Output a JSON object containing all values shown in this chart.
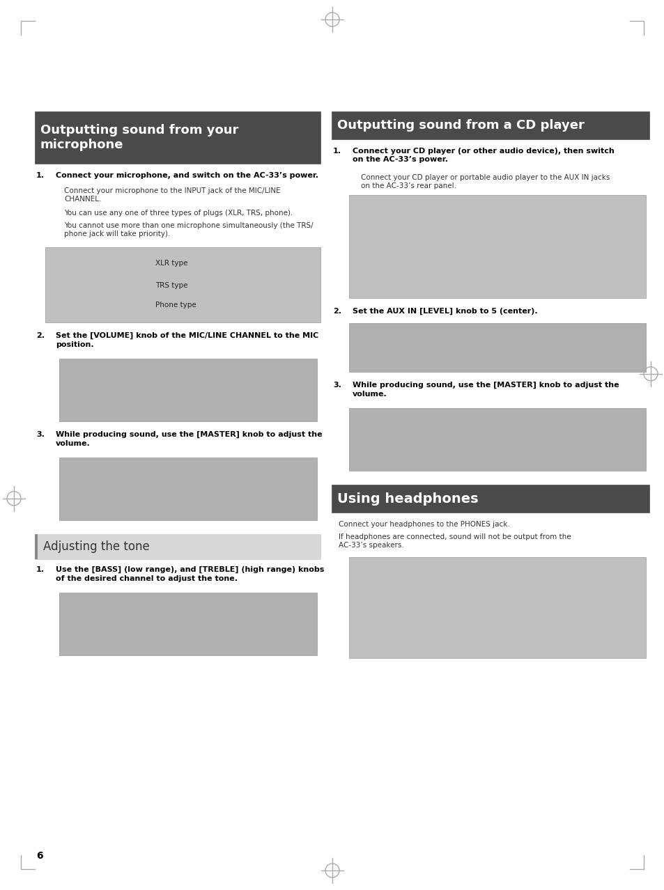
{
  "page_bg": "#ffffff",
  "page_num": "6",
  "header_bg": "#4a4a4a",
  "header_text_color": "#ffffff",
  "sec1_title": "Outputting sound from your\nmicrophone",
  "sec1_step1_bold": "Connect your microphone, and switch on the AC-33’s power.",
  "sec1_step1_text1": "Connect your microphone to the INPUT jack of the MIC/LINE\nCHANNEL.",
  "sec1_step1_text2": "You can use any one of three types of plugs (XLR, TRS, phone).",
  "sec1_step1_text3": "You cannot use more than one microphone simultaneously (the TRS/\nphone jack will take priority).",
  "sec1_step2_bold": "Set the [VOLUME] knob of the MIC/LINE CHANNEL to the MIC\nposition.",
  "sec1_step3_bold": "While producing sound, use the [MASTER] knob to adjust the\nvolume.",
  "sec2_title": "Outputting sound from a CD player",
  "sec2_step1_bold": "Connect your CD player (or other audio device), then switch\non the AC-33’s power.",
  "sec2_step1_text1": "Connect your CD player or portable audio player to the AUX IN jacks\non the AC-33’s rear panel.",
  "sec2_step2_bold": "Set the AUX IN [LEVEL] knob to 5 (center).",
  "sec2_step3_bold": "While producing sound, use the [MASTER] knob to adjust the\nvolume.",
  "sec3_title": "Using headphones",
  "sec3_text1": "Connect your headphones to the PHONES jack.",
  "sec3_text2": "If headphones are connected, sound will not be output from the\nAC-33’s speakers.",
  "tone_title": "Adjusting the tone",
  "tone_step1_bold": "Use the [BASS] (low range), and [TREBLE] (high range) knobs\nof the desired channel to adjust the tone.",
  "xlr_label": "XLR type",
  "trs_label": "TRS type",
  "phone_label": "Phone type"
}
